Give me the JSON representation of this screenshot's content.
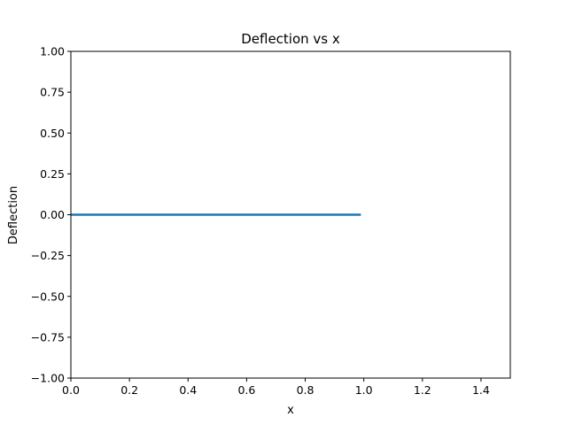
{
  "chart_data": {
    "type": "line",
    "title": "Deflection vs x",
    "xlabel": "x",
    "ylabel": "Deflection",
    "xlim": [
      0,
      1.5
    ],
    "ylim": [
      -1,
      1
    ],
    "grid": false,
    "x_ticks": [
      "0.0",
      "0.2",
      "0.4",
      "0.6",
      "0.8",
      "1.0",
      "1.2",
      "1.4"
    ],
    "y_ticks": [
      "−1.00",
      "−0.75",
      "−0.50",
      "−0.25",
      "0.00",
      "0.25",
      "0.50",
      "0.75",
      "1.00"
    ],
    "series": [
      {
        "color": "#1f77b4",
        "x": [
          0.0,
          0.25,
          0.5,
          0.75,
          0.99
        ],
        "y": [
          0.0,
          0.0,
          0.0,
          0.0,
          0.0
        ]
      }
    ]
  }
}
